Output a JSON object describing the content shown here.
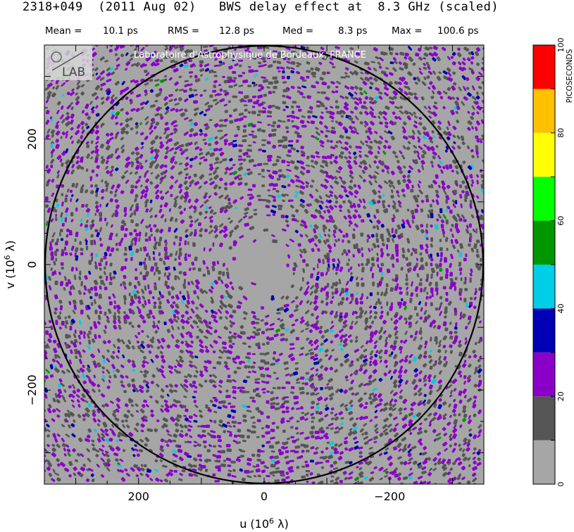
{
  "header": {
    "title": "2318+049  (2011 Aug 02)   BWS delay effect at  8.3 GHz (scaled)",
    "stats": [
      {
        "label": "Mean =",
        "value": "10.1 ps"
      },
      {
        "label": "RMS =",
        "value": "12.8 ps"
      },
      {
        "label": "Med =",
        "value": "8.3 ps"
      },
      {
        "label": "Max =",
        "value": "100.6 ps"
      }
    ],
    "watermark": "Laboratoire d'Astrophysique de Bordeaux, FRANCE",
    "logo_text": "LAB"
  },
  "chart_data": {
    "type": "heatmap",
    "xlabel": "u  (10^6 λ)",
    "ylabel": "v  (10^6 λ)",
    "xlim": [
      350,
      -350
    ],
    "ylim": [
      -350,
      350
    ],
    "x_ticks": [
      {
        "value": 200,
        "label": "200"
      },
      {
        "value": 0,
        "label": "0"
      },
      {
        "value": -200,
        "label": "−200"
      }
    ],
    "y_ticks": [
      {
        "value": 200,
        "label": "200"
      },
      {
        "value": 0,
        "label": "0"
      },
      {
        "value": -200,
        "label": "−200"
      }
    ],
    "circle_radius": 350,
    "colorbar": {
      "label": "PICOSECONDS",
      "range": [
        0,
        100
      ],
      "tick_values": [
        0,
        20,
        40,
        60,
        80,
        100
      ],
      "tick_labels": [
        "0",
        "20",
        "40",
        "60",
        "80",
        "100"
      ],
      "levels": [
        {
          "from": 0,
          "to": 10,
          "color": "#a6a6a6"
        },
        {
          "from": 10,
          "to": 20,
          "color": "#555555"
        },
        {
          "from": 20,
          "to": 30,
          "color": "#8a00c8"
        },
        {
          "from": 30,
          "to": 40,
          "color": "#0000b4"
        },
        {
          "from": 40,
          "to": 50,
          "color": "#00cde6"
        },
        {
          "from": 50,
          "to": 60,
          "color": "#009600"
        },
        {
          "from": 60,
          "to": 70,
          "color": "#00ff00"
        },
        {
          "from": 70,
          "to": 80,
          "color": "#ffff00"
        },
        {
          "from": 80,
          "to": 90,
          "color": "#ffc000"
        },
        {
          "from": 90,
          "to": 100,
          "color": "#ff0000"
        }
      ]
    },
    "stats_ps": {
      "mean": 10.1,
      "rms": 12.8,
      "median": 8.3,
      "max": 100.6
    }
  }
}
